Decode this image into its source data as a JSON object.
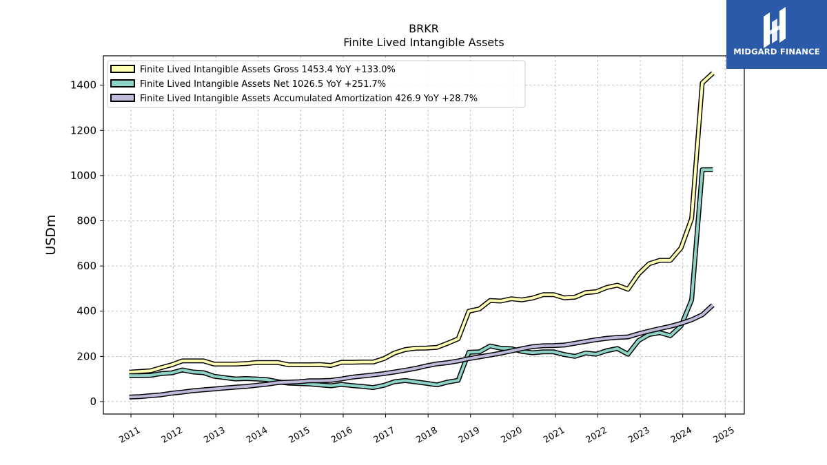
{
  "chart_data": {
    "type": "line",
    "title": "BRKR",
    "subtitle": "Finite Lived Intangible Assets",
    "ylabel": "USDm",
    "xlabel": "",
    "x_ticks": [
      "2011",
      "2012",
      "2013",
      "2014",
      "2015",
      "2016",
      "2017",
      "2018",
      "2019",
      "2020",
      "2021",
      "2022",
      "2023",
      "2024",
      "2025"
    ],
    "y_ticks": [
      "0",
      "200",
      "400",
      "600",
      "800",
      "1000",
      "1200",
      "1400"
    ],
    "xlim": [
      2010.35,
      2025.45
    ],
    "ylim": [
      -55,
      1530
    ],
    "grid": true,
    "legend_position": "top-left",
    "x": [
      2010.96,
      2011.21,
      2011.46,
      2011.71,
      2011.96,
      2012.21,
      2012.46,
      2012.71,
      2012.96,
      2013.21,
      2013.46,
      2013.71,
      2013.96,
      2014.21,
      2014.46,
      2014.71,
      2014.96,
      2015.21,
      2015.46,
      2015.71,
      2015.96,
      2016.21,
      2016.46,
      2016.71,
      2016.96,
      2017.21,
      2017.46,
      2017.71,
      2017.96,
      2018.21,
      2018.46,
      2018.71,
      2018.96,
      2019.21,
      2019.46,
      2019.71,
      2019.96,
      2020.21,
      2020.46,
      2020.71,
      2020.96,
      2021.21,
      2021.46,
      2021.71,
      2021.96,
      2022.21,
      2022.46,
      2022.71,
      2022.96,
      2023.21,
      2023.46,
      2023.71,
      2023.96,
      2024.21,
      2024.46,
      2024.71
    ],
    "series": [
      {
        "name": "Finite Lived Intangible Assets Gross  1453.4 YoY +133.0%",
        "color": "#ffffb3",
        "values": [
          130,
          133,
          136,
          150,
          163,
          180,
          180,
          180,
          166,
          166,
          166,
          168,
          173,
          173,
          173,
          163,
          163,
          163,
          164,
          160,
          174,
          174,
          175,
          175,
          190,
          215,
          230,
          236,
          237,
          240,
          258,
          278,
          400,
          410,
          447,
          445,
          455,
          450,
          458,
          473,
          473,
          459,
          462,
          482,
          486,
          505,
          515,
          497,
          565,
          610,
          625,
          625,
          680,
          810,
          1410,
          1453.4
        ]
      },
      {
        "name": "Finite Lived Intangible Assets Net  1026.5 YoY +251.7%",
        "color": "#8dd3c7",
        "values": [
          115,
          115,
          116,
          124,
          127,
          140,
          131,
          128,
          112,
          106,
          100,
          102,
          100,
          97,
          88,
          82,
          80,
          78,
          74,
          70,
          76,
          71,
          67,
          62,
          72,
          88,
          93,
          87,
          81,
          74,
          86,
          94,
          218,
          220,
          246,
          236,
          234,
          222,
          216,
          220,
          220,
          208,
          200,
          215,
          210,
          225,
          235,
          210,
          270,
          297,
          305,
          292,
          335,
          450,
          1026,
          1026.5
        ]
      },
      {
        "name": "Finite Lived Intangible Assets Accumulated Amortization  426.9 YoY +28.7%",
        "color": "#bebada",
        "values": [
          20,
          22,
          26,
          30,
          37,
          42,
          48,
          52,
          56,
          60,
          64,
          67,
          72,
          77,
          84,
          86,
          88,
          92,
          92,
          94,
          100,
          108,
          113,
          118,
          124,
          131,
          139,
          147,
          158,
          167,
          172,
          180,
          190,
          198,
          206,
          214,
          224,
          234,
          243,
          247,
          248,
          250,
          258,
          266,
          274,
          280,
          284,
          286,
          300,
          312,
          323,
          333,
          346,
          362,
          384,
          426.9
        ]
      }
    ]
  },
  "logo": {
    "text": "MIDGARD FINANCE",
    "background": "#2a5aa8"
  }
}
